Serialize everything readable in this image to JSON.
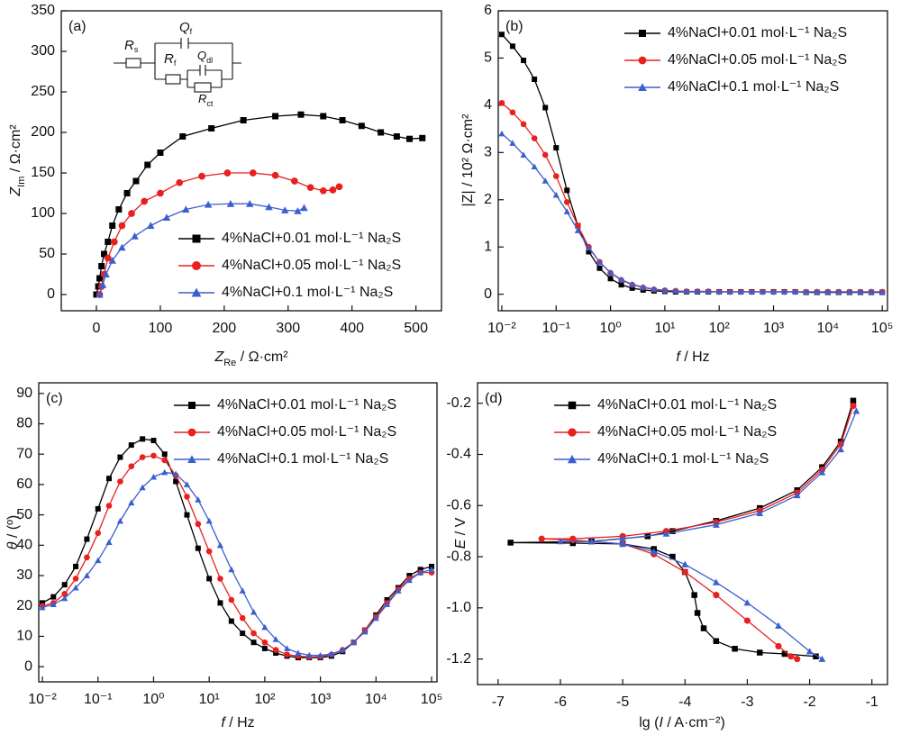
{
  "chart_data": [
    {
      "type": "line",
      "panel_label": "(a)",
      "xlabel": [
        "Z",
        "Re",
        " / Ω·cm²"
      ],
      "ylabel": [
        "Z",
        "Im",
        " / Ω·cm²"
      ],
      "circuit": [
        [
          "R",
          "s"
        ],
        [
          "Q",
          "f"
        ],
        [
          "R",
          "f"
        ],
        [
          "Q",
          "dl"
        ],
        [
          "R",
          "ct"
        ]
      ],
      "xlim": [
        -55,
        540
      ],
      "ylim": [
        -20,
        350
      ],
      "xticks": [
        0,
        100,
        200,
        300,
        400,
        500
      ],
      "yticks": [
        0,
        50,
        100,
        150,
        200,
        250,
        300,
        350
      ],
      "legend": "lower right",
      "series": [
        {
          "name": "4%NaCl+0.01 mol·L⁻¹ Na₂S",
          "color": "#000000",
          "marker": "square",
          "x": [
            0,
            3,
            5,
            8,
            12,
            18,
            25,
            35,
            48,
            62,
            80,
            100,
            135,
            180,
            230,
            280,
            320,
            355,
            385,
            415,
            445,
            470,
            490,
            510
          ],
          "values": [
            0,
            10,
            20,
            35,
            50,
            65,
            85,
            105,
            125,
            140,
            160,
            175,
            195,
            205,
            215,
            220,
            222,
            220,
            215,
            208,
            200,
            195,
            192,
            193
          ]
        },
        {
          "name": "4%NaCl+0.05 mol·L⁻¹ Na₂S",
          "color": "#e8201e",
          "marker": "circle",
          "x": [
            5,
            8,
            12,
            18,
            28,
            40,
            55,
            75,
            100,
            130,
            165,
            205,
            245,
            280,
            310,
            335,
            355,
            370,
            380
          ],
          "values": [
            0,
            10,
            25,
            45,
            65,
            85,
            100,
            115,
            125,
            138,
            146,
            150,
            150,
            147,
            140,
            132,
            128,
            129,
            133
          ]
        },
        {
          "name": "4%NaCl+0.1 mol·L⁻¹ Na₂S",
          "color": "#3c5fd0",
          "marker": "triangle",
          "x": [
            5,
            10,
            15,
            25,
            40,
            60,
            85,
            110,
            140,
            175,
            210,
            240,
            270,
            295,
            315,
            325
          ],
          "values": [
            0,
            12,
            25,
            42,
            58,
            72,
            85,
            95,
            105,
            111,
            112,
            112,
            108,
            104,
            103,
            107
          ]
        }
      ]
    },
    {
      "type": "line",
      "panel_label": "(b)",
      "xlabel": [
        "f",
        " / Hz"
      ],
      "ylabel": [
        "|Z| / 10² Ω·cm²"
      ],
      "xlog": true,
      "xlim": [
        0.0086,
        125000
      ],
      "ylim": [
        -0.35,
        6
      ],
      "xticks": [
        {
          "value": 0.01,
          "label": "10⁻²"
        },
        {
          "value": 0.1,
          "label": "10⁻¹"
        },
        {
          "value": 1,
          "label": "10⁰"
        },
        {
          "value": 10,
          "label": "10¹"
        },
        {
          "value": 100,
          "label": "10²"
        },
        {
          "value": 1000,
          "label": "10³"
        },
        {
          "value": 10000,
          "label": "10⁴"
        },
        {
          "value": 100000,
          "label": "10⁵"
        }
      ],
      "yticks": [
        0,
        1,
        2,
        3,
        4,
        5,
        6
      ],
      "legend": "upper right",
      "x": [
        0.01,
        0.0158,
        0.0251,
        0.0398,
        0.0631,
        0.1,
        0.158,
        0.251,
        0.398,
        0.631,
        1,
        1.58,
        2.51,
        3.98,
        6.31,
        10,
        15.8,
        25.1,
        39.8,
        63.1,
        100,
        158,
        251,
        398,
        631,
        1000,
        1580,
        2510,
        3980,
        6310,
        10000,
        15800,
        25100,
        39800,
        63100,
        100000
      ],
      "series": [
        {
          "name": "4%NaCl+0.01 mol·L⁻¹ Na₂S",
          "color": "#000000",
          "marker": "square",
          "values": [
            5.5,
            5.25,
            4.95,
            4.55,
            3.95,
            3.1,
            2.2,
            1.45,
            0.9,
            0.55,
            0.33,
            0.2,
            0.13,
            0.09,
            0.07,
            0.06,
            0.05,
            0.05,
            0.05,
            0.05,
            0.05,
            0.05,
            0.05,
            0.05,
            0.05,
            0.05,
            0.05,
            0.05,
            0.04,
            0.04,
            0.04,
            0.04,
            0.04,
            0.04,
            0.04,
            0.04
          ]
        },
        {
          "name": "4%NaCl+0.05 mol·L⁻¹ Na₂S",
          "color": "#e8201e",
          "marker": "circle",
          "values": [
            4.05,
            3.85,
            3.6,
            3.3,
            2.95,
            2.5,
            1.95,
            1.45,
            1.0,
            0.68,
            0.45,
            0.3,
            0.2,
            0.14,
            0.1,
            0.08,
            0.07,
            0.06,
            0.06,
            0.06,
            0.05,
            0.05,
            0.05,
            0.05,
            0.05,
            0.05,
            0.05,
            0.05,
            0.05,
            0.05,
            0.05,
            0.05,
            0.05,
            0.05,
            0.05,
            0.05
          ]
        },
        {
          "name": "4%NaCl+0.1 mol·L⁻¹ Na₂S",
          "color": "#3c5fd0",
          "marker": "triangle",
          "values": [
            3.4,
            3.2,
            2.95,
            2.7,
            2.4,
            2.1,
            1.75,
            1.35,
            0.98,
            0.68,
            0.46,
            0.31,
            0.21,
            0.15,
            0.11,
            0.08,
            0.07,
            0.06,
            0.06,
            0.06,
            0.05,
            0.05,
            0.05,
            0.05,
            0.05,
            0.05,
            0.05,
            0.05,
            0.05,
            0.05,
            0.05,
            0.05,
            0.05,
            0.05,
            0.05,
            0.05
          ]
        }
      ]
    },
    {
      "type": "line",
      "panel_label": "(c)",
      "xlabel": [
        "f",
        " / Hz"
      ],
      "ylabel": [
        "θ",
        " / (º)"
      ],
      "xlog": true,
      "xlim": [
        0.0086,
        125000
      ],
      "ylim": [
        -5,
        93.5
      ],
      "xticks": [
        {
          "value": 0.01,
          "label": "10⁻²"
        },
        {
          "value": 0.1,
          "label": "10⁻¹"
        },
        {
          "value": 1,
          "label": "10⁰"
        },
        {
          "value": 10,
          "label": "10¹"
        },
        {
          "value": 100,
          "label": "10²"
        },
        {
          "value": 1000,
          "label": "10³"
        },
        {
          "value": 10000,
          "label": "10⁴"
        },
        {
          "value": 100000,
          "label": "10⁵"
        }
      ],
      "yticks": [
        0,
        10,
        20,
        30,
        40,
        50,
        60,
        70,
        80,
        90
      ],
      "legend": "upper right",
      "x": [
        0.01,
        0.0158,
        0.0251,
        0.0398,
        0.0631,
        0.1,
        0.158,
        0.251,
        0.398,
        0.631,
        1,
        1.58,
        2.51,
        3.98,
        6.31,
        10,
        15.8,
        25.1,
        39.8,
        63.1,
        100,
        158,
        251,
        398,
        631,
        1000,
        1580,
        2510,
        3980,
        6310,
        10000,
        15800,
        25100,
        39800,
        63100,
        100000
      ],
      "series": [
        {
          "name": "4%NaCl+0.01 mol·L⁻¹ Na₂S",
          "color": "#000000",
          "marker": "square",
          "values": [
            21,
            23,
            27,
            33,
            42,
            52,
            62,
            69,
            73,
            75,
            74.5,
            70,
            61,
            50,
            39,
            29,
            21,
            15,
            11,
            8,
            6,
            4.5,
            3.5,
            3,
            3,
            3,
            3.5,
            5,
            8,
            12,
            17,
            22,
            26,
            30,
            32,
            33
          ]
        },
        {
          "name": "4%NaCl+0.05 mol·L⁻¹ Na₂S",
          "color": "#e8201e",
          "marker": "circle",
          "values": [
            20,
            21,
            24,
            29,
            36,
            44,
            53,
            61,
            66,
            69,
            69.5,
            68,
            63,
            56,
            47,
            38,
            29,
            22,
            16,
            11,
            8,
            5.5,
            4,
            3.5,
            3.2,
            3.3,
            4,
            5.5,
            8,
            12,
            16.5,
            21,
            25.5,
            29,
            31,
            31
          ]
        },
        {
          "name": "4%NaCl+0.1 mol·L⁻¹ Na₂S",
          "color": "#3c5fd0",
          "marker": "triangle",
          "values": [
            19.5,
            20.5,
            22.5,
            26,
            30,
            35,
            41,
            48,
            54,
            59,
            62.5,
            64,
            63.5,
            60,
            55,
            48,
            40,
            32,
            25,
            18,
            13,
            9,
            6,
            4.5,
            3.8,
            3.7,
            4.2,
            5.5,
            8,
            11.5,
            16,
            20.5,
            25,
            28.5,
            31,
            32
          ]
        }
      ]
    },
    {
      "type": "line",
      "panel_label": "(d)",
      "xlabel": [
        "lg (",
        "I",
        " / A·cm⁻²)"
      ],
      "ylabel": [
        "E",
        " / V"
      ],
      "xlim": [
        -7.33,
        -0.75
      ],
      "ylim": [
        -1.3,
        -0.12
      ],
      "xticks": [
        -7,
        -6,
        -5,
        -4,
        -3,
        -2,
        -1
      ],
      "yticks": [
        -0.2,
        -0.4,
        -0.6,
        -0.8,
        {
          "value": -1,
          "label": "-1.0"
        },
        -1.2
      ],
      "legend": "upper left",
      "series": [
        {
          "name": "4%NaCl+0.01 mol·L⁻¹ Na₂S",
          "color": "#000000",
          "marker": "square",
          "x": [
            -1.9,
            -2.4,
            -2.8,
            -3.2,
            -3.5,
            -3.7,
            -3.8,
            -3.85,
            -4.0,
            -4.2,
            -4.5,
            -5,
            -5.8,
            -6.8,
            -5.5,
            -4.6,
            -4.2,
            -3.5,
            -2.8,
            -2.2,
            -1.8,
            -1.5,
            -1.3
          ],
          "values": [
            -1.19,
            -1.18,
            -1.175,
            -1.16,
            -1.13,
            -1.08,
            -1.02,
            -0.95,
            -0.86,
            -0.8,
            -0.77,
            -0.75,
            -0.747,
            -0.745,
            -0.74,
            -0.72,
            -0.7,
            -0.66,
            -0.61,
            -0.54,
            -0.45,
            -0.35,
            -0.19
          ]
        },
        {
          "name": "4%NaCl+0.05 mol·L⁻¹ Na₂S",
          "color": "#e8201e",
          "marker": "circle",
          "x": [
            -2.2,
            -2.3,
            -2.5,
            -3,
            -3.5,
            -4,
            -4.5,
            -5,
            -5.8,
            -6.3,
            -5.8,
            -5,
            -4.3,
            -3.5,
            -2.8,
            -2.2,
            -1.8,
            -1.5,
            -1.3
          ],
          "values": [
            -1.2,
            -1.19,
            -1.15,
            -1.05,
            -0.95,
            -0.86,
            -0.79,
            -0.75,
            -0.735,
            -0.73,
            -0.73,
            -0.72,
            -0.7,
            -0.665,
            -0.62,
            -0.55,
            -0.46,
            -0.36,
            -0.21
          ]
        },
        {
          "name": "4%NaCl+0.1 mol·L⁻¹ Na₂S",
          "color": "#3c5fd0",
          "marker": "triangle",
          "x": [
            -1.8,
            -2.0,
            -2.5,
            -3,
            -3.5,
            -4,
            -4.5,
            -5,
            -5.5,
            -6.0,
            -5.5,
            -5,
            -4.3,
            -3.5,
            -2.8,
            -2.2,
            -1.8,
            -1.5,
            -1.25
          ],
          "values": [
            -1.2,
            -1.17,
            -1.07,
            -0.98,
            -0.9,
            -0.83,
            -0.78,
            -0.75,
            -0.74,
            -0.74,
            -0.74,
            -0.73,
            -0.71,
            -0.675,
            -0.63,
            -0.56,
            -0.47,
            -0.38,
            -0.23
          ]
        }
      ]
    }
  ]
}
